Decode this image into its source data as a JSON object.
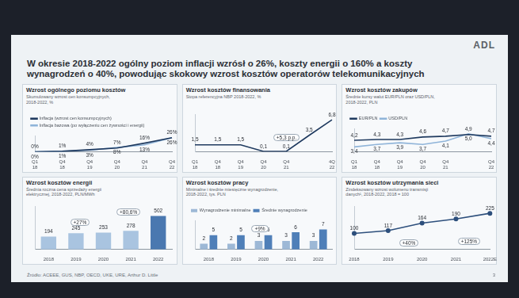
{
  "slide": {
    "title": "W okresie 2018-2022 ogólny poziom inflacji wzrósł o 26%, koszty energii o 160% a koszty wynagrodzeń o 40%, powodując skokowy wzrost kosztów operatorów telekomunikacyjnych",
    "logo": "ADL",
    "source": "Źródło: ACEEE, GUS, NBP, OECD, UKE, URE, Arthur D. Little",
    "page": "3"
  },
  "chart_data": [
    {
      "type": "line",
      "title": "Wzrost ogólnego poziomu kosztów",
      "subtitle": "Skumulowany wzrost cen konsumpcyjnych, 2018-2022, %",
      "categories": [
        "Q1 18",
        "Q4 18",
        "Q4 19",
        "Q4 20",
        "Q4 21",
        "Q4 22"
      ],
      "series": [
        {
          "name": "Inflacja (wzrost cen konsumpcyjnych)",
          "color": "#1f3a5f",
          "values": [
            0,
            1,
            4,
            7,
            16,
            26
          ],
          "value_labels": [
            "0%",
            "1%",
            "4%",
            "7%",
            "16%",
            "26%"
          ]
        },
        {
          "name": "Inflacja bazowa (po wyłączeniu cen żywności i energii)",
          "color": "#8fb4d9",
          "values": [
            0,
            1,
            3,
            8,
            13,
            26
          ],
          "value_labels": [
            "0%",
            "1%",
            "3%",
            "8%",
            "13%",
            "26%"
          ]
        }
      ],
      "ylim": [
        0,
        30
      ],
      "grid": false,
      "legend": "top",
      "data_labels": true,
      "tick_labels": "x"
    },
    {
      "type": "line",
      "title": "Wzrost kosztów finansowania",
      "subtitle": "Stopa referencyjna NBP 2018-2022, %",
      "categories": [
        "Q1 18",
        "Q4 18",
        "Q4 19",
        "Q4 20",
        "Q4 21",
        null,
        "4Q 22"
      ],
      "series": [
        {
          "name": "Stopa referencyjna NBP",
          "color": "#1f3a5f",
          "values": [
            1.5,
            1.5,
            1.5,
            0.1,
            0.1,
            3.5,
            6.8
          ],
          "value_labels": [
            "1,5",
            "1,5",
            "1,5",
            "0,1",
            "0,1",
            "3,5",
            "6,8"
          ]
        }
      ],
      "annotations": [
        "+5,3 p.p."
      ],
      "ylim": [
        0,
        8
      ],
      "grid": false,
      "data_labels": true,
      "tick_labels": "x"
    },
    {
      "type": "line",
      "title": "Wzrost kosztów zakupów",
      "subtitle": "Średnie kursy walut EUR/PLN oraz USD/PLN, 2018-2022, PLN",
      "categories": [
        "Q1 18",
        "Q4 18",
        "Q4 19",
        "Q4 20",
        "Q4 21",
        null,
        "Q4 22"
      ],
      "series": [
        {
          "name": "EUR/PLN",
          "color": "#1f3a5f",
          "values": [
            4.2,
            4.3,
            4.3,
            4.6,
            4.7,
            4.9,
            4.7
          ],
          "value_labels": [
            "4,2",
            "4,3",
            "4,3",
            "4,6",
            "4,7",
            "4,9",
            "4,7"
          ]
        },
        {
          "name": "USD/PLN",
          "color": "#8fb4d9",
          "values": [
            3.4,
            3.7,
            3.9,
            3.7,
            4.1,
            5.0,
            4.4
          ],
          "value_labels": [
            "3,4",
            "3,7",
            "3,9",
            "3,7",
            "4,1",
            "5,0",
            "4,4"
          ]
        }
      ],
      "ylim": [
        2.8,
        5.6
      ],
      "grid": false,
      "legend": "top",
      "data_labels": true,
      "tick_labels": "x"
    },
    {
      "type": "bar",
      "title": "Wzrost kosztów energii",
      "subtitle": "Średnia roczna cena sprzedaży energii elektrycznej, 2018-2022, PLN/MWh",
      "categories": [
        "2018",
        "2019",
        "2020",
        "2021",
        "2022"
      ],
      "values": [
        194,
        245,
        253,
        278,
        502
      ],
      "colors": [
        "#a9c4e0",
        "#a9c4e0",
        "#a9c4e0",
        "#a9c4e0",
        "#4a78b0"
      ],
      "annotations": [
        "+27%",
        "+80,6%"
      ],
      "ylim": [
        0,
        650
      ],
      "grid": false,
      "data_labels": true,
      "tick_labels": "x"
    },
    {
      "type": "bar",
      "title": "Wzrost kosztów pracy",
      "subtitle": "Minimalne i średnie miesięczne wynagrodzenie, 2018-2022, tys. PLN",
      "categories": [
        "2018",
        "2019",
        "2020",
        "2021",
        "2022"
      ],
      "series": [
        {
          "name": "Wynagrodzenie minimalne",
          "color": "#9db8d6",
          "values": [
            2,
            2,
            3,
            3,
            3
          ]
        },
        {
          "name": "Średnie wynagrodzenie",
          "color": "#4f7fb8",
          "values": [
            5,
            5,
            5,
            6,
            7
          ]
        }
      ],
      "annotations": [
        "+9%"
      ],
      "ylim": [
        0,
        10
      ],
      "grid": false,
      "legend": "top",
      "data_labels": true,
      "tick_labels": "x"
    },
    {
      "type": "line",
      "title": "Wzrost kosztów utrzymania sieci",
      "subtitle": "Zindeksowany wzrost wolumenu transmisji danych¹, 2018-2022, 2018 = 100",
      "categories": [
        "2018",
        "2019",
        "2020",
        "2021",
        "2022E"
      ],
      "values": [
        100,
        117,
        164,
        190,
        225
      ],
      "color": "#2d4f7c",
      "marker": "circle",
      "annotations": [
        "+40%",
        "+125%"
      ],
      "ylim": [
        0,
        270
      ],
      "grid": false,
      "data_labels": true,
      "tick_labels": "x"
    }
  ]
}
